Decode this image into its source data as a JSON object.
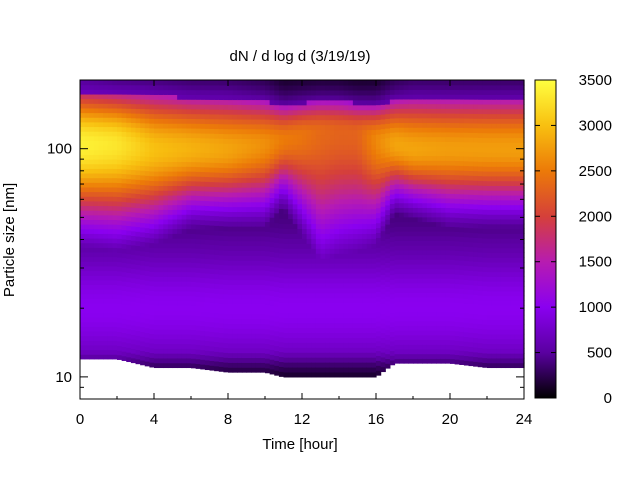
{
  "chart_data": {
    "type": "heatmap",
    "title": "dN / d log d (3/19/19)",
    "xlabel": "Time [hour]",
    "ylabel": "Particle size [nm]",
    "xlim": [
      0,
      24
    ],
    "x_ticks": [
      0,
      4,
      8,
      12,
      16,
      20,
      24
    ],
    "x_tick_labels": [
      "0",
      "4",
      "8",
      "12",
      "16",
      "20",
      "24"
    ],
    "y_scale": "log",
    "ylim": [
      8,
      200
    ],
    "y_ticks": [
      10,
      100
    ],
    "y_tick_labels": [
      "10",
      "100"
    ],
    "y_data_range": [
      10,
      200
    ],
    "colorbar": {
      "min": 0,
      "max": 3500,
      "ticks": [
        0,
        500,
        1000,
        1500,
        2000,
        2500,
        3000,
        3500
      ],
      "tick_labels": [
        "0",
        "500",
        "1000",
        "1500",
        "2000",
        "2500",
        "3000",
        "3500"
      ],
      "palette": [
        "#000000",
        "#5a00a0",
        "#8a00f0",
        "#b71cb0",
        "#d5403a",
        "#ec7a08",
        "#f8c010",
        "#ffff40"
      ]
    },
    "time_hours": [
      0,
      2,
      4,
      6,
      8,
      10,
      11,
      12,
      13,
      14,
      15,
      16,
      17,
      18,
      20,
      22,
      24
    ],
    "peak_diameter_nm": [
      105,
      105,
      100,
      100,
      100,
      105,
      110,
      115,
      120,
      120,
      118,
      110,
      105,
      100,
      100,
      100,
      100
    ],
    "peak_concentration": [
      3400,
      3300,
      3000,
      2900,
      2800,
      2650,
      2500,
      2450,
      2350,
      2300,
      2300,
      2600,
      2800,
      2800,
      2750,
      2750,
      2750
    ],
    "lower_edge_diameter_nm": [
      42,
      40,
      42,
      50,
      50,
      50,
      60,
      45,
      30,
      33,
      35,
      40,
      58,
      55,
      50,
      50,
      50
    ],
    "upper_edge_diameter_nm": [
      190,
      185,
      185,
      180,
      180,
      175,
      165,
      170,
      175,
      175,
      170,
      165,
      175,
      180,
      180,
      180,
      180
    ],
    "smallest_size_bin_nm": [
      12,
      12,
      11,
      11,
      10.5,
      10.5,
      10,
      10,
      10,
      10,
      10,
      10,
      11.5,
      11.5,
      11.5,
      11,
      11
    ]
  }
}
